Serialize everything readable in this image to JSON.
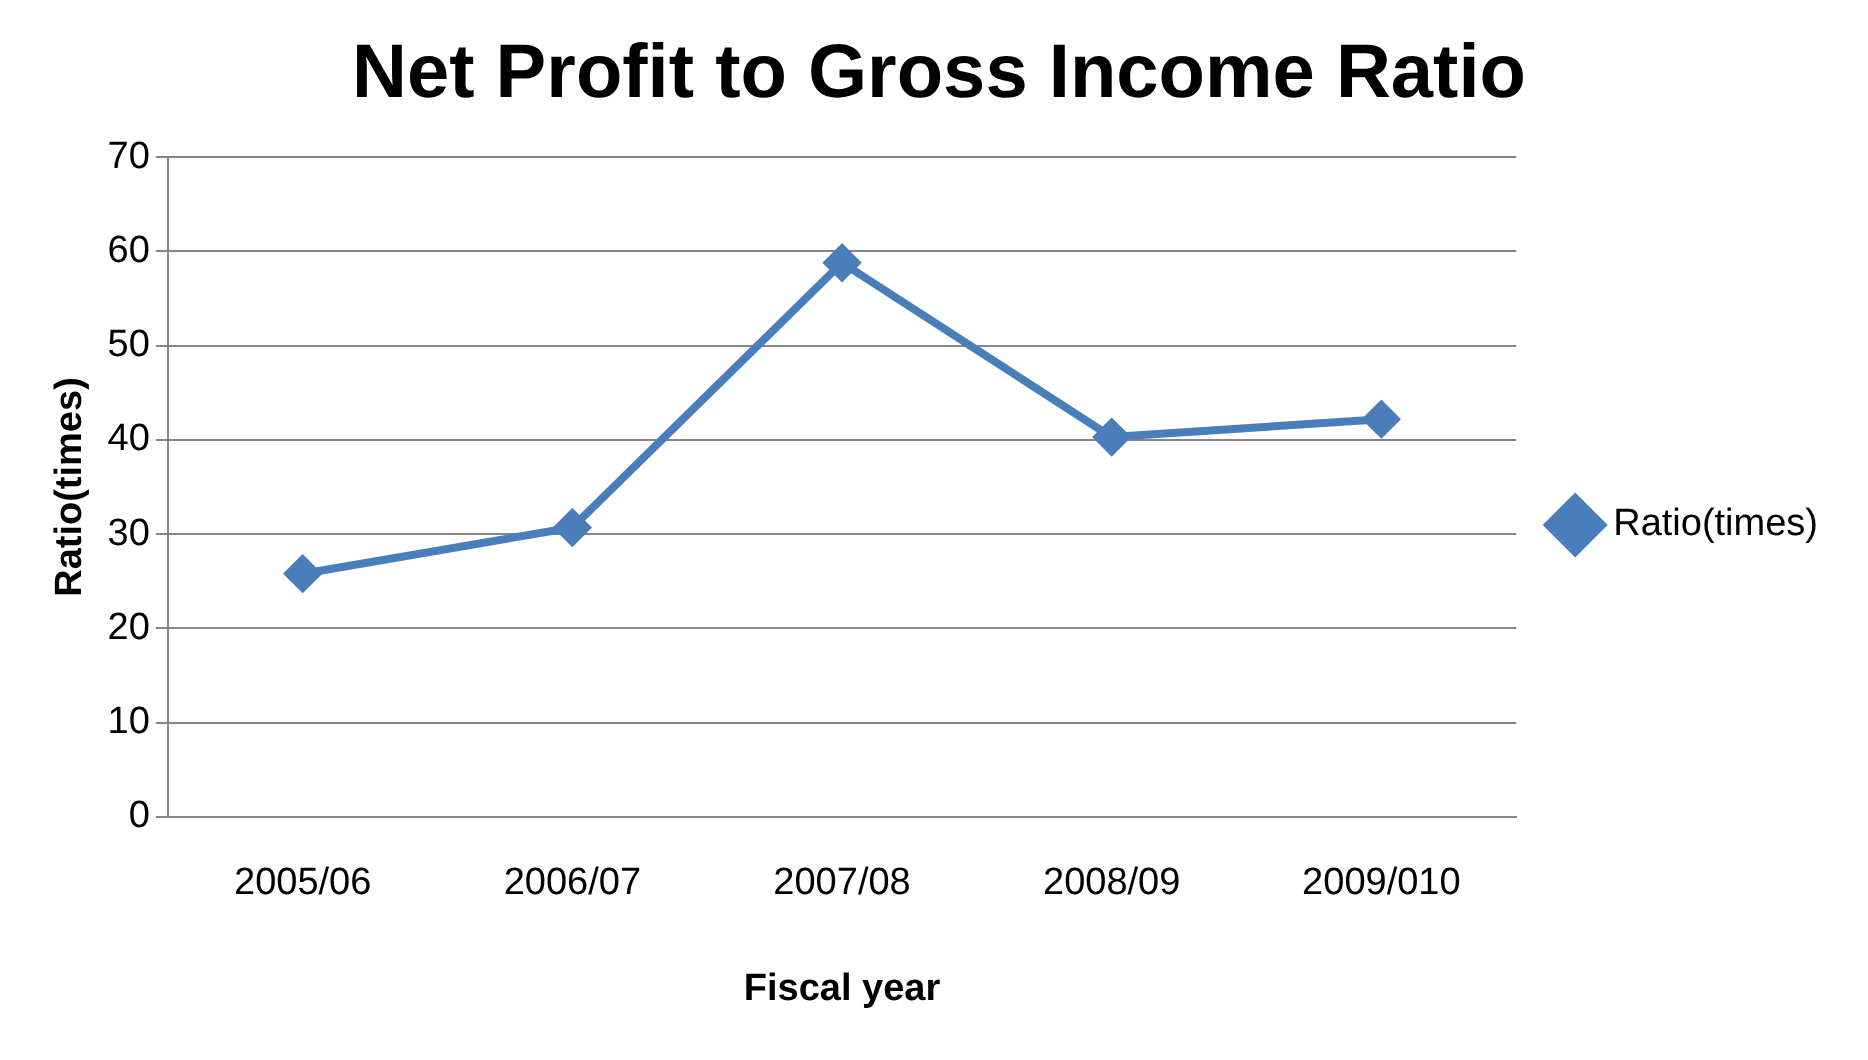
{
  "chart_data": {
    "type": "line",
    "title": "Net Profit to Gross Income Ratio",
    "xlabel": "Fiscal year",
    "ylabel": "Ratio(times)",
    "categories": [
      "2005/06",
      "2006/07",
      "2007/08",
      "2008/09",
      "2009/010"
    ],
    "series": [
      {
        "name": "Ratio(times)",
        "color": "#4a7ebb",
        "values": [
          25.8,
          30.7,
          58.8,
          40.3,
          42.2
        ]
      }
    ],
    "ylim": [
      0,
      70
    ],
    "yticks": [
      0,
      10,
      20,
      30,
      40,
      50,
      60,
      70
    ],
    "grid": "y",
    "legend": "right",
    "marker": "diamond",
    "line_style": "solid"
  }
}
